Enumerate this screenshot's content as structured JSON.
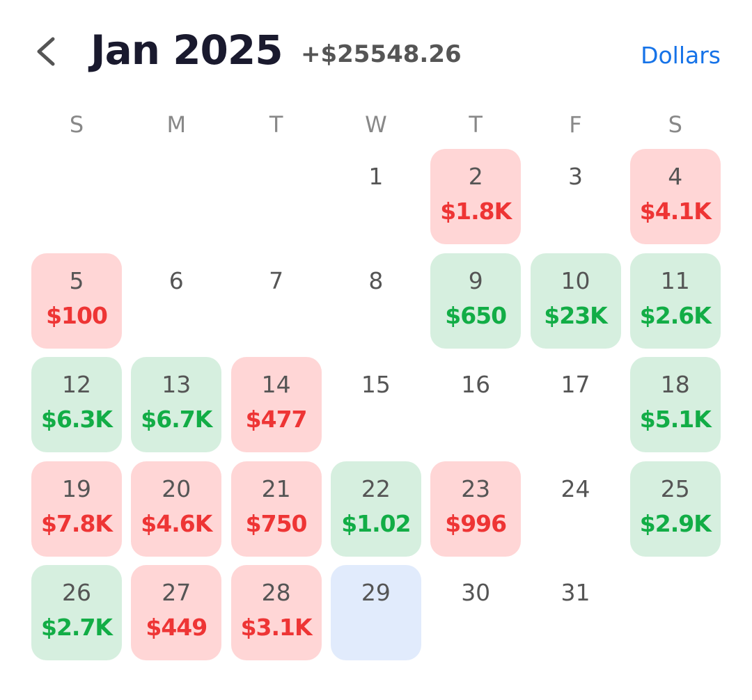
{
  "header": {
    "title": "Jan 2025",
    "total": "+$25548.26",
    "unit_button": "Dollars"
  },
  "weekdays": [
    "S",
    "M",
    "T",
    "W",
    "T",
    "F",
    "S"
  ],
  "weeks": [
    [
      null,
      null,
      null,
      {
        "day": 1
      },
      {
        "day": 2,
        "amount": "$1.8K",
        "tone": "loss"
      },
      {
        "day": 3
      },
      {
        "day": 4,
        "amount": "$4.1K",
        "tone": "loss"
      }
    ],
    [
      {
        "day": 5,
        "amount": "$100",
        "tone": "loss"
      },
      {
        "day": 6
      },
      {
        "day": 7
      },
      {
        "day": 8
      },
      {
        "day": 9,
        "amount": "$650",
        "tone": "gain"
      },
      {
        "day": 10,
        "amount": "$23K",
        "tone": "gain"
      },
      {
        "day": 11,
        "amount": "$2.6K",
        "tone": "gain"
      }
    ],
    [
      {
        "day": 12,
        "amount": "$6.3K",
        "tone": "gain"
      },
      {
        "day": 13,
        "amount": "$6.7K",
        "tone": "gain"
      },
      {
        "day": 14,
        "amount": "$477",
        "tone": "loss"
      },
      {
        "day": 15
      },
      {
        "day": 16
      },
      {
        "day": 17
      },
      {
        "day": 18,
        "amount": "$5.1K",
        "tone": "gain"
      }
    ],
    [
      {
        "day": 19,
        "amount": "$7.8K",
        "tone": "loss"
      },
      {
        "day": 20,
        "amount": "$4.6K",
        "tone": "loss"
      },
      {
        "day": 21,
        "amount": "$750",
        "tone": "loss"
      },
      {
        "day": 22,
        "amount": "$1.02",
        "tone": "gain"
      },
      {
        "day": 23,
        "amount": "$996",
        "tone": "loss"
      },
      {
        "day": 24
      },
      {
        "day": 25,
        "amount": "$2.9K",
        "tone": "gain"
      }
    ],
    [
      {
        "day": 26,
        "amount": "$2.7K",
        "tone": "gain"
      },
      {
        "day": 27,
        "amount": "$449",
        "tone": "loss"
      },
      {
        "day": 28,
        "amount": "$3.1K",
        "tone": "loss"
      },
      {
        "day": 29,
        "tone": "today"
      },
      {
        "day": 30
      },
      {
        "day": 31
      },
      null
    ]
  ]
}
